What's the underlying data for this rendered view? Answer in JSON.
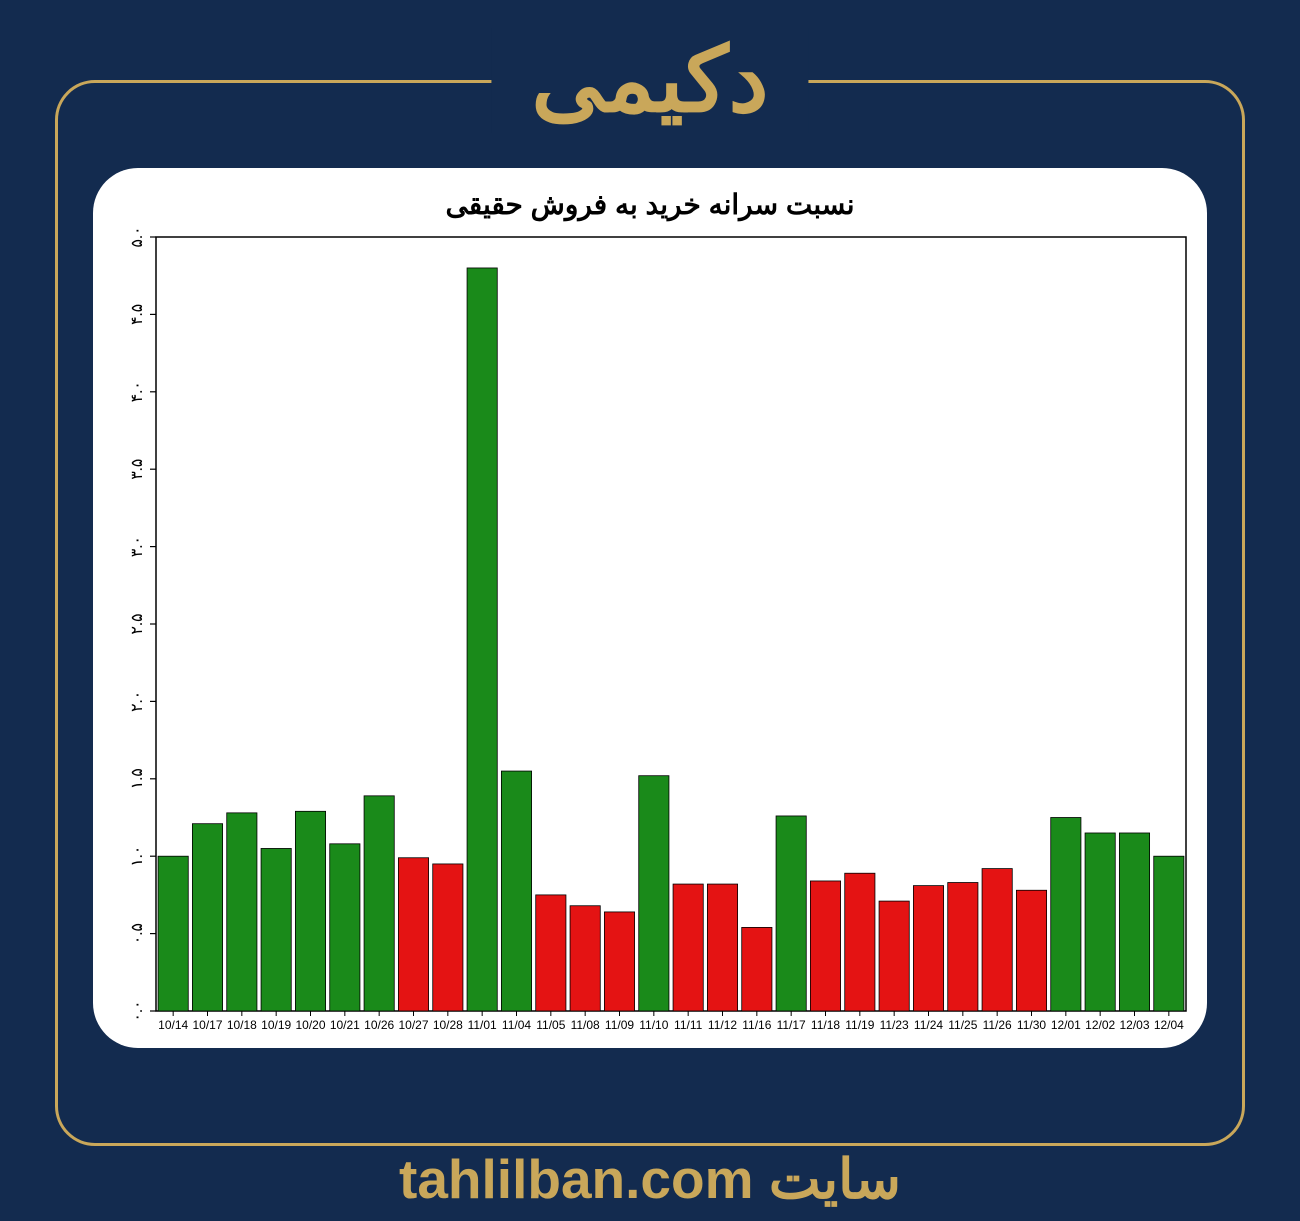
{
  "page": {
    "background_color": "#132b4f",
    "frame_border_color": "#c9a75a",
    "title": "دکیمی",
    "title_color": "#c9a75a",
    "title_fontsize": 90,
    "footer_label": "سایت",
    "footer_domain": "tahlilban.com",
    "footer_color": "#c9a75a",
    "footer_fontsize": 55
  },
  "chart": {
    "type": "bar",
    "title": "نسبت سرانه خرید به فروش حقیقی",
    "title_fontsize": 28,
    "title_color": "#000000",
    "background_color": "#ffffff",
    "panel_radius": 45,
    "ylim": [
      0.0,
      5.0
    ],
    "ytick_step": 0.5,
    "ytick_labels": [
      "۰.۰",
      "۰.۵",
      "۱.۰",
      "۱.۵",
      "۲.۰",
      "۲.۵",
      "۳.۰",
      "۳.۵",
      "۴.۰",
      "۴.۵",
      "۵.۰"
    ],
    "ytick_values": [
      0.0,
      0.5,
      1.0,
      1.5,
      2.0,
      2.5,
      3.0,
      3.5,
      4.0,
      4.5,
      5.0
    ],
    "ytick_fontsize": 16,
    "xtick_fontsize": 12,
    "xtick_color": "#000000",
    "tick_mark_color": "#000000",
    "axis_color": "#000000",
    "green_color": "#1a8a1a",
    "red_color": "#e41313",
    "bar_edge_color": "#000000",
    "bar_width_ratio": 0.88,
    "bars": [
      {
        "label": "10/14",
        "value": 1.0,
        "color": "green"
      },
      {
        "label": "10/17",
        "value": 1.21,
        "color": "green"
      },
      {
        "label": "10/18",
        "value": 1.28,
        "color": "green"
      },
      {
        "label": "10/19",
        "value": 1.05,
        "color": "green"
      },
      {
        "label": "10/20",
        "value": 1.29,
        "color": "green"
      },
      {
        "label": "10/21",
        "value": 1.08,
        "color": "green"
      },
      {
        "label": "10/26",
        "value": 1.39,
        "color": "green"
      },
      {
        "label": "10/27",
        "value": 0.99,
        "color": "red"
      },
      {
        "label": "10/28",
        "value": 0.95,
        "color": "red"
      },
      {
        "label": "11/01",
        "value": 4.8,
        "color": "green"
      },
      {
        "label": "11/04",
        "value": 1.55,
        "color": "green"
      },
      {
        "label": "11/05",
        "value": 0.75,
        "color": "red"
      },
      {
        "label": "11/08",
        "value": 0.68,
        "color": "red"
      },
      {
        "label": "11/09",
        "value": 0.64,
        "color": "red"
      },
      {
        "label": "11/10",
        "value": 1.52,
        "color": "green"
      },
      {
        "label": "11/11",
        "value": 0.82,
        "color": "red"
      },
      {
        "label": "11/12",
        "value": 0.82,
        "color": "red"
      },
      {
        "label": "11/16",
        "value": 0.54,
        "color": "red"
      },
      {
        "label": "11/17",
        "value": 1.26,
        "color": "green"
      },
      {
        "label": "11/18",
        "value": 0.84,
        "color": "red"
      },
      {
        "label": "11/19",
        "value": 0.89,
        "color": "red"
      },
      {
        "label": "11/23",
        "value": 0.71,
        "color": "red"
      },
      {
        "label": "11/24",
        "value": 0.81,
        "color": "red"
      },
      {
        "label": "11/25",
        "value": 0.83,
        "color": "red"
      },
      {
        "label": "11/26",
        "value": 0.92,
        "color": "red"
      },
      {
        "label": "11/30",
        "value": 0.78,
        "color": "red"
      },
      {
        "label": "12/01",
        "value": 1.25,
        "color": "green"
      },
      {
        "label": "12/02",
        "value": 1.15,
        "color": "green"
      },
      {
        "label": "12/03",
        "value": 1.15,
        "color": "green"
      },
      {
        "label": "12/04",
        "value": 1.0,
        "color": "green"
      }
    ]
  }
}
